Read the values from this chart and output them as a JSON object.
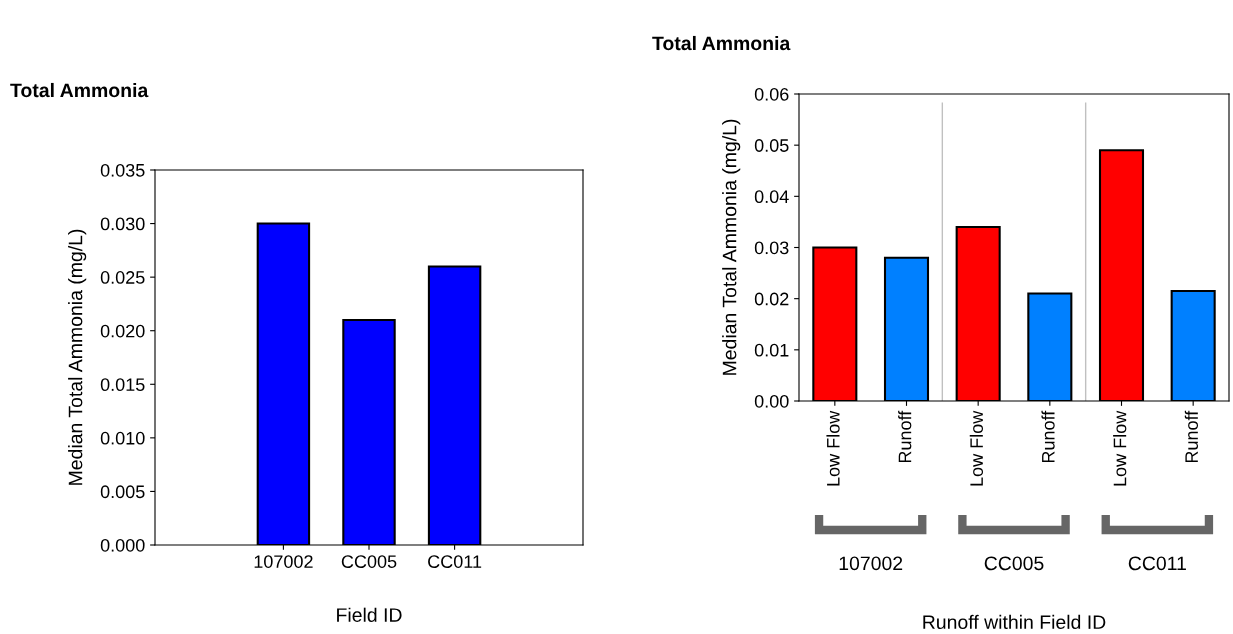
{
  "chart_data": [
    {
      "type": "bar",
      "title": "Total Ammonia",
      "xlabel": "Field ID",
      "ylabel": "Median Total Ammonia (mg/L)",
      "categories": [
        "107002",
        "CC005",
        "CC011"
      ],
      "values": [
        0.03,
        0.021,
        0.026
      ],
      "color": "#0000ff",
      "ylim": [
        0,
        0.035
      ],
      "yticks": [
        {
          "value": 0,
          "label": "0.000"
        },
        {
          "value": 0.005,
          "label": "0.005"
        },
        {
          "value": 0.01,
          "label": "0.010"
        },
        {
          "value": 0.015,
          "label": "0.015"
        },
        {
          "value": 0.02,
          "label": "0.020"
        },
        {
          "value": 0.025,
          "label": "0.025"
        },
        {
          "value": 0.03,
          "label": "0.030"
        },
        {
          "value": 0.035,
          "label": "0.035"
        }
      ]
    },
    {
      "type": "bar",
      "title": "Total Ammonia",
      "xlabel": "Runoff within Field ID",
      "ylabel": "Median Total Ammonia (mg/L)",
      "categories": [
        "Low Flow",
        "Runoff",
        "Low Flow",
        "Runoff",
        "Low Flow",
        "Runoff"
      ],
      "values": [
        0.03,
        0.028,
        0.034,
        0.021,
        0.049,
        0.0215
      ],
      "colors": [
        "#ff0000",
        "#0080ff",
        "#ff0000",
        "#0080ff",
        "#ff0000",
        "#0080ff"
      ],
      "ylim": [
        0,
        0.06
      ],
      "yticks": [
        {
          "value": 0,
          "label": "0.00"
        },
        {
          "value": 0.01,
          "label": "0.01"
        },
        {
          "value": 0.02,
          "label": "0.02"
        },
        {
          "value": 0.03,
          "label": "0.03"
        },
        {
          "value": 0.04,
          "label": "0.04"
        },
        {
          "value": 0.05,
          "label": "0.05"
        },
        {
          "value": 0.06,
          "label": "0.06"
        }
      ],
      "annotations": [
        "107002",
        "CC005",
        "CC011"
      ]
    }
  ]
}
